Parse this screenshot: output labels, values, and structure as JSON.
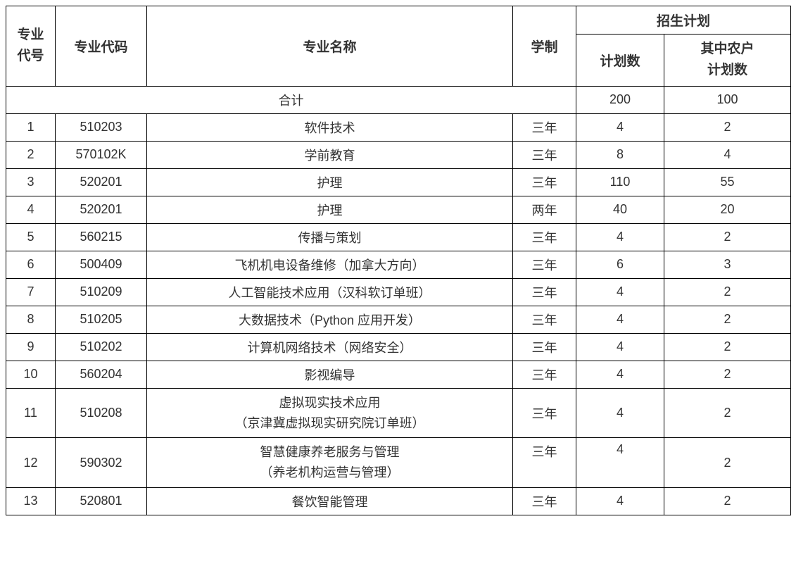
{
  "table": {
    "headers": {
      "major_num": "专业\n代号",
      "major_code": "专业代码",
      "major_name": "专业名称",
      "duration": "学制",
      "enrollment_plan": "招生计划",
      "plan_count": "计划数",
      "rural_plan_count": "其中农户\n计划数"
    },
    "subtotal": {
      "label": "合计",
      "plan_count": "200",
      "rural_plan_count": "100"
    },
    "rows": [
      {
        "num": "1",
        "code": "510203",
        "name": "软件技术",
        "duration": "三年",
        "plan": "4",
        "rural": "2"
      },
      {
        "num": "2",
        "code": "570102K",
        "name": "学前教育",
        "duration": "三年",
        "plan": "8",
        "rural": "4"
      },
      {
        "num": "3",
        "code": "520201",
        "name": "护理",
        "duration": "三年",
        "plan": "110",
        "rural": "55"
      },
      {
        "num": "4",
        "code": "520201",
        "name": "护理",
        "duration": "两年",
        "plan": "40",
        "rural": "20"
      },
      {
        "num": "5",
        "code": "560215",
        "name": "传播与策划",
        "duration": "三年",
        "plan": "4",
        "rural": "2"
      },
      {
        "num": "6",
        "code": "500409",
        "name": "飞机机电设备维修（加拿大方向）",
        "duration": "三年",
        "plan": "6",
        "rural": "3"
      },
      {
        "num": "7",
        "code": "510209",
        "name": "人工智能技术应用（汉科软订单班）",
        "duration": "三年",
        "plan": "4",
        "rural": "2"
      },
      {
        "num": "8",
        "code": "510205",
        "name": "大数据技术（Python 应用开发）",
        "duration": "三年",
        "plan": "4",
        "rural": "2"
      },
      {
        "num": "9",
        "code": "510202",
        "name": "计算机网络技术（网络安全）",
        "duration": "三年",
        "plan": "4",
        "rural": "2"
      },
      {
        "num": "10",
        "code": "560204",
        "name": "影视编导",
        "duration": "三年",
        "plan": "4",
        "rural": "2"
      },
      {
        "num": "11",
        "code": "510208",
        "name": "虚拟现实技术应用\n（京津冀虚拟现实研究院订单班）",
        "duration": "三年",
        "plan": "4",
        "rural": "2"
      },
      {
        "num": "12",
        "code": "590302",
        "name": "智慧健康养老服务与管理\n（养老机构运营与管理）",
        "duration": "三年",
        "plan": "4",
        "rural": "2",
        "valign_top": true
      },
      {
        "num": "13",
        "code": "520801",
        "name": "餐饮智能管理",
        "duration": "三年",
        "plan": "4",
        "rural": "2"
      }
    ],
    "colors": {
      "border": "#000000",
      "text": "#333333",
      "background": "#ffffff"
    },
    "column_widths": {
      "num": 70,
      "code": 130,
      "name": 520,
      "duration": 90,
      "plan": 125,
      "rural": 180
    }
  }
}
